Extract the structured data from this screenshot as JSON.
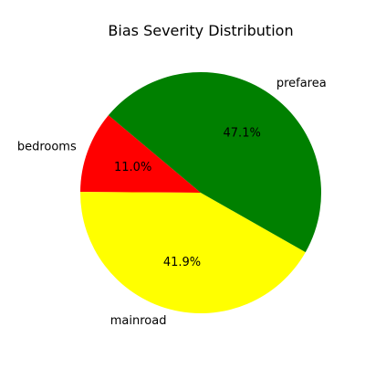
{
  "chart_data": {
    "type": "pie",
    "title": "Bias Severity Distribution",
    "slices": [
      {
        "label": "bedrooms",
        "value": 11.0,
        "percent_label": "11.0%",
        "color": "#ff0000"
      },
      {
        "label": "mainroad",
        "value": 41.9,
        "percent_label": "41.9%",
        "color": "#ffff00"
      },
      {
        "label": "prefarea",
        "value": 47.1,
        "percent_label": "47.1%",
        "color": "#008000"
      }
    ],
    "start_angle_deg": 140,
    "direction": "counterclockwise"
  }
}
